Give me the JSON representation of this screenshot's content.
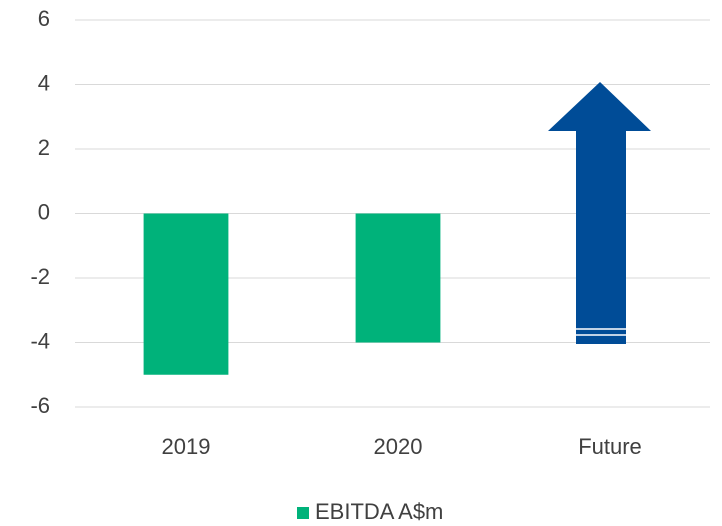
{
  "chart_data": {
    "type": "bar",
    "categories": [
      "2019",
      "2020",
      "Future"
    ],
    "series": [
      {
        "name": "EBITDA A$m",
        "color": "#00b27a",
        "values": [
          -5,
          -4,
          null
        ]
      }
    ],
    "ylim": [
      -6,
      6
    ],
    "yticks": [
      -6,
      -4,
      -2,
      0,
      2,
      4,
      6
    ],
    "grid": true,
    "legend": "bottom"
  }
}
